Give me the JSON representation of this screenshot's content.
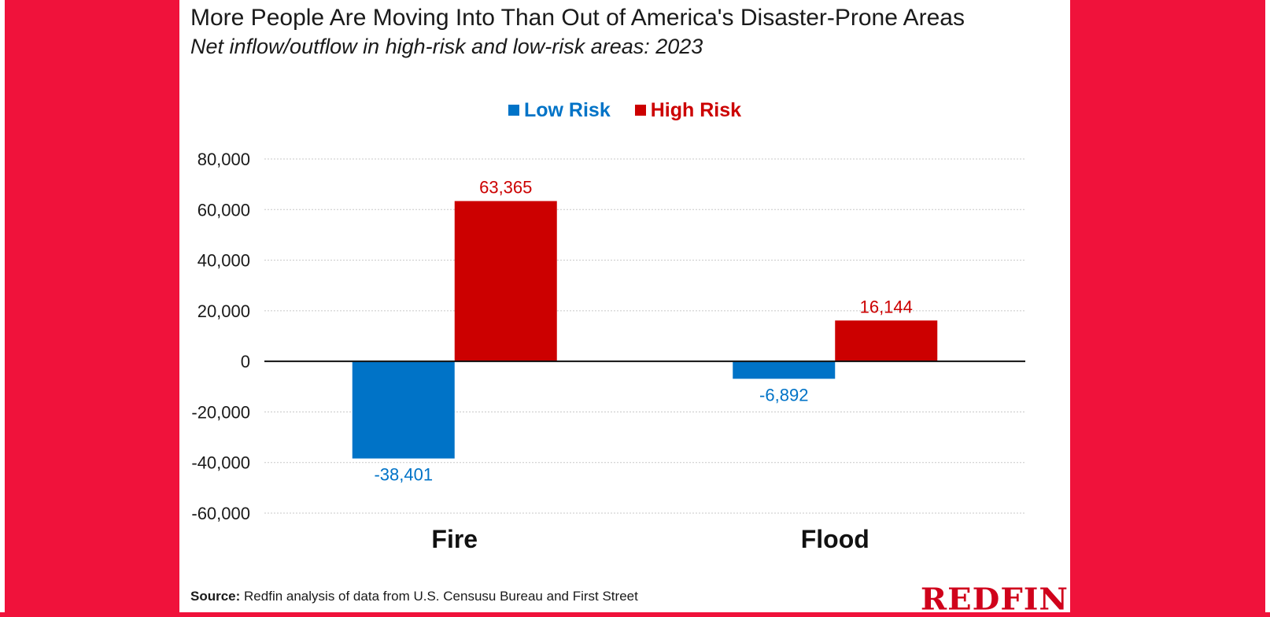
{
  "chart_data": {
    "type": "bar",
    "title": "More People Are Moving Into Than Out of America's Disaster-Prone Areas",
    "subtitle": "Net inflow/outflow in high-risk and low-risk areas: 2023",
    "categories": [
      "Fire",
      "Flood"
    ],
    "series": [
      {
        "name": "Low Risk",
        "color": "#0073c7",
        "values": [
          -38401,
          -6892
        ],
        "labels": [
          "-38,401",
          "-6,892"
        ]
      },
      {
        "name": "High Risk",
        "color": "#cc0000",
        "values": [
          63365,
          16144
        ],
        "labels": [
          "63,365",
          "16,144"
        ]
      }
    ],
    "ylim": [
      -60000,
      80000
    ],
    "yticks": [
      80000,
      60000,
      40000,
      20000,
      0,
      -20000,
      -40000,
      -60000
    ],
    "ytick_labels": [
      "80,000",
      "60,000",
      "40,000",
      "20,000",
      "0",
      "-20,000",
      "-40,000",
      "-60,000"
    ],
    "grid": true,
    "legend_position": "top-center"
  },
  "source": {
    "label": "Source:",
    "text": "Redfin analysis of data from U.S. Censusu Bureau and First Street"
  },
  "brand": {
    "name": "REDFIN",
    "color": "#d0021b"
  }
}
